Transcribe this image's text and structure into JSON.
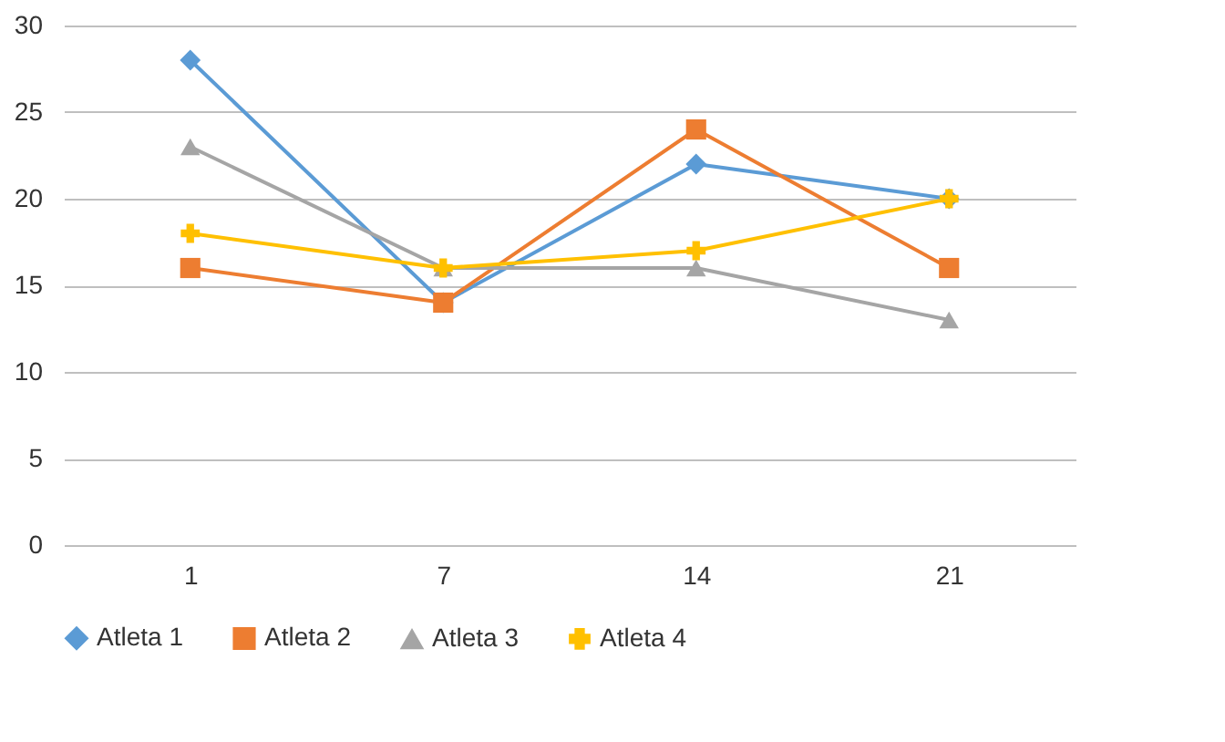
{
  "chart_data": {
    "type": "line",
    "categories": [
      "1",
      "7",
      "14",
      "21"
    ],
    "series": [
      {
        "name": "Atleta 1",
        "color": "#5b9bd5",
        "marker": "diamond",
        "values": [
          28,
          14,
          22,
          20
        ]
      },
      {
        "name": "Atleta 2",
        "color": "#ed7d31",
        "marker": "square",
        "values": [
          16,
          14,
          24,
          16
        ]
      },
      {
        "name": "Atleta 3",
        "color": "#a5a5a5",
        "marker": "triangle",
        "values": [
          23,
          16,
          16,
          13
        ]
      },
      {
        "name": "Atleta 4",
        "color": "#ffc000",
        "marker": "cross",
        "values": [
          18,
          16,
          17,
          20
        ]
      }
    ],
    "ylim": [
      0,
      30
    ],
    "yticks": [
      0,
      5,
      10,
      15,
      20,
      25,
      30
    ],
    "grid": "y",
    "legend": "bottom"
  }
}
